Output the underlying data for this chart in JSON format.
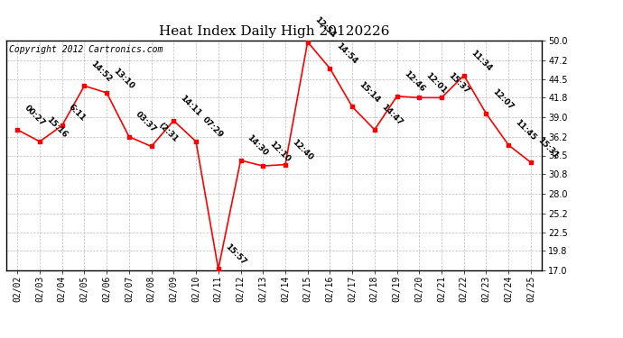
{
  "title": "Heat Index Daily High 20120226",
  "copyright": "Copyright 2012 Cartronics.com",
  "dates": [
    "02/02",
    "02/03",
    "02/04",
    "02/05",
    "02/06",
    "02/07",
    "02/08",
    "02/09",
    "02/10",
    "02/11",
    "02/12",
    "02/13",
    "02/14",
    "02/15",
    "02/16",
    "02/17",
    "02/18",
    "02/19",
    "02/20",
    "02/21",
    "02/22",
    "02/23",
    "02/24",
    "02/25"
  ],
  "values": [
    37.2,
    35.5,
    37.8,
    43.5,
    42.5,
    36.2,
    34.8,
    38.5,
    35.5,
    17.2,
    32.8,
    32.0,
    32.2,
    49.8,
    46.0,
    40.5,
    37.2,
    42.0,
    41.8,
    41.8,
    45.0,
    39.5,
    35.0,
    32.5
  ],
  "time_labels": [
    "00:27",
    "15:16",
    "6:11",
    "14:52",
    "13:10",
    "03:37",
    "(2:31",
    "14:11",
    "07:29",
    "15:57",
    "14:30",
    "12:10",
    "12:40",
    "12:54",
    "14:54",
    "15:14",
    "14:47",
    "12:46",
    "12:01",
    "15:37",
    "11:34",
    "12:07",
    "11:45",
    "15:31"
  ],
  "ylim": [
    17.0,
    50.0
  ],
  "yticks": [
    17.0,
    19.8,
    22.5,
    25.2,
    28.0,
    30.8,
    33.5,
    36.2,
    39.0,
    41.8,
    44.5,
    47.2,
    50.0
  ],
  "line_color": "red",
  "marker_color": "red",
  "bg_color": "white",
  "grid_color": "#bbbbbb",
  "title_fontsize": 11,
  "annotation_fontsize": 6.5,
  "tick_fontsize": 7,
  "copyright_fontsize": 7
}
